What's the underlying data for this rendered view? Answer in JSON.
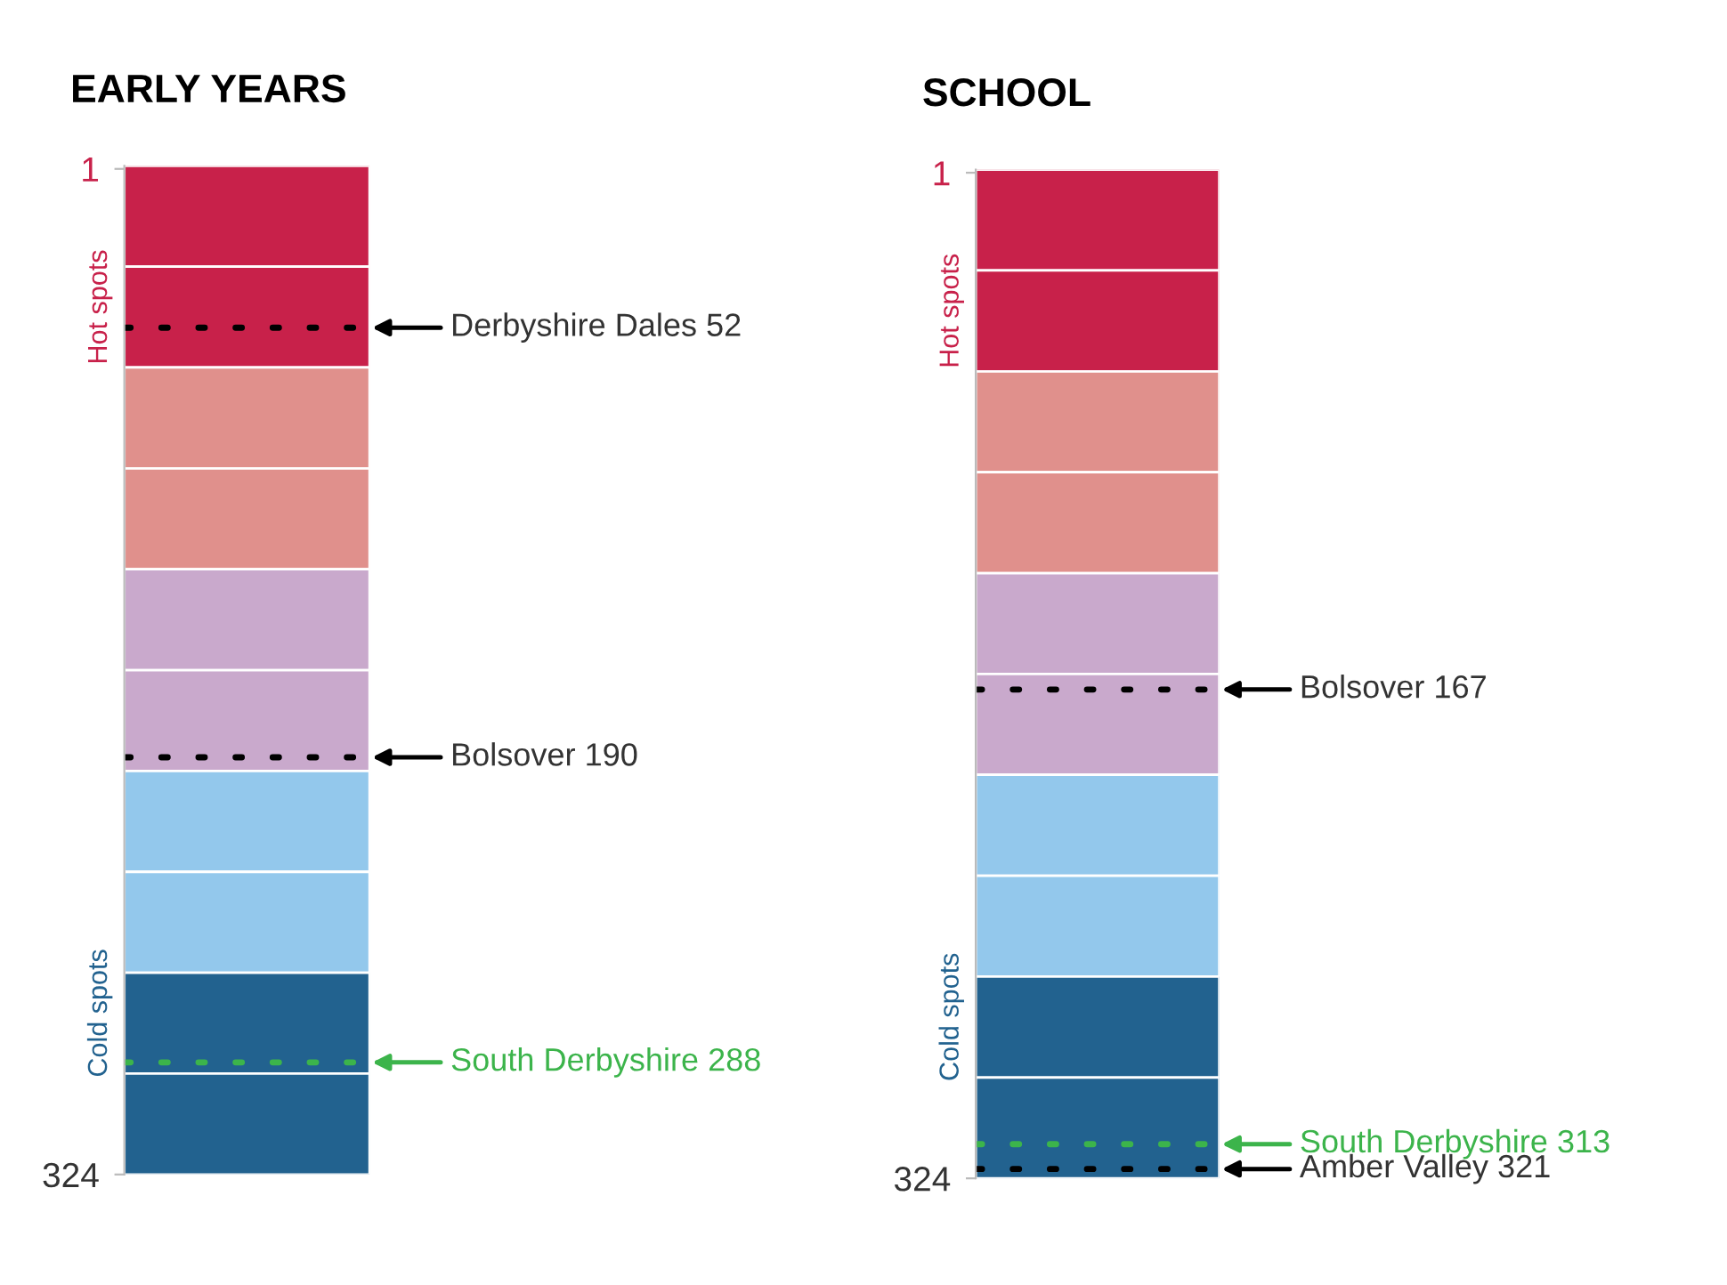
{
  "chart_data": [
    {
      "type": "bar",
      "title": "EARLY YEARS",
      "categories": [
        null
      ],
      "stacked": true,
      "ylim": [
        324,
        0
      ],
      "yticks": [
        1,
        324
      ],
      "series": [
        {
          "color": "#c8214a",
          "values": [
            32.4
          ]
        },
        {
          "color": "#c8214a",
          "values": [
            32.4
          ]
        },
        {
          "color": "#e0908c",
          "values": [
            32.4
          ]
        },
        {
          "color": "#e0908c",
          "values": [
            32.4
          ]
        },
        {
          "color": "#c9a9cc",
          "values": [
            32.4
          ]
        },
        {
          "color": "#c9a9cc",
          "values": [
            32.4
          ]
        },
        {
          "color": "#93c8ec",
          "values": [
            32.4
          ]
        },
        {
          "color": "#93c8ec",
          "values": [
            32.4
          ]
        },
        {
          "color": "#22628f",
          "values": [
            32.4
          ]
        },
        {
          "color": "#22628f",
          "values": [
            32.4
          ]
        }
      ],
      "ref_lines": [
        {
          "axis": "y",
          "value": 52,
          "label": "Derbyshire Dales 52",
          "color": "#000000",
          "line_style": "dotted"
        },
        {
          "axis": "y",
          "value": 190,
          "label": "Bolsover 190",
          "color": "#000000",
          "line_style": "dotted"
        },
        {
          "axis": "y",
          "value": 288,
          "label": "South Derbyshire 288",
          "color": "#3cb44b",
          "line_style": "dotted"
        }
      ],
      "annotations": [
        "Hot spots",
        "Cold spots"
      ]
    },
    {
      "type": "bar",
      "title": "SCHOOL",
      "categories": [
        null
      ],
      "stacked": true,
      "ylim": [
        324,
        0
      ],
      "yticks": [
        1,
        324
      ],
      "series": [
        {
          "color": "#c8214a",
          "values": [
            32.4
          ]
        },
        {
          "color": "#c8214a",
          "values": [
            32.4
          ]
        },
        {
          "color": "#e0908c",
          "values": [
            32.4
          ]
        },
        {
          "color": "#e0908c",
          "values": [
            32.4
          ]
        },
        {
          "color": "#c9a9cc",
          "values": [
            32.4
          ]
        },
        {
          "color": "#c9a9cc",
          "values": [
            32.4
          ]
        },
        {
          "color": "#93c8ec",
          "values": [
            32.4
          ]
        },
        {
          "color": "#93c8ec",
          "values": [
            32.4
          ]
        },
        {
          "color": "#22628f",
          "values": [
            32.4
          ]
        },
        {
          "color": "#22628f",
          "values": [
            32.4
          ]
        }
      ],
      "ref_lines": [
        {
          "axis": "y",
          "value": 167,
          "label": "Bolsover 167",
          "color": "#000000",
          "line_style": "dotted"
        },
        {
          "axis": "y",
          "value": 313,
          "label": "South Derbyshire 313",
          "color": "#3cb44b",
          "line_style": "dotted"
        },
        {
          "axis": "y",
          "value": 321,
          "label": "Amber Valley 321",
          "color": "#000000",
          "line_style": "dotted"
        }
      ],
      "annotations": [
        "Hot spots",
        "Cold spots"
      ]
    }
  ]
}
